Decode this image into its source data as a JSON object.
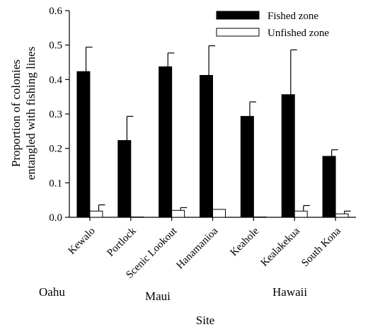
{
  "chart_data": {
    "type": "bar",
    "xlabel": "Site",
    "ylabel": [
      "Proportion of colonies",
      "entangled with fishing lines"
    ],
    "ylim": [
      0,
      0.6
    ],
    "yticks": [
      "0.0",
      "0.1",
      "0.2",
      "0.3",
      "0.4",
      "0.5",
      "0.6"
    ],
    "categories": [
      "Kewalo",
      "Portlock",
      "Scenic Lookout",
      "Hanamanioa",
      "Keahole",
      "Kealakekua",
      "South Kona"
    ],
    "series": [
      {
        "name": "Fished zone",
        "color": "#000000",
        "values": [
          0.423,
          0.223,
          0.437,
          0.412,
          0.293,
          0.356,
          0.177
        ],
        "errors": [
          0.071,
          0.07,
          0.04,
          0.086,
          0.042,
          0.13,
          0.019
        ]
      },
      {
        "name": "Unfished zone",
        "color": "#ffffff",
        "values": [
          0.018,
          0.001,
          0.02,
          0.023,
          0.001,
          0.018,
          0.01
        ],
        "errors": [
          0.018,
          0.0,
          0.008,
          0.0,
          0.0,
          0.016,
          0.008
        ]
      }
    ],
    "groups": [
      "Oahu",
      "Maui",
      "Hawaii"
    ],
    "legend_position": "top-right",
    "grid": false
  }
}
